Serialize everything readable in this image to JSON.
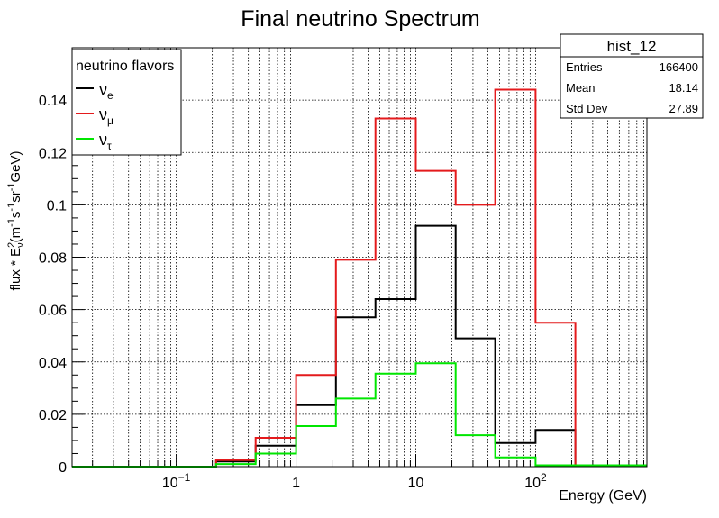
{
  "chart_data": {
    "type": "line",
    "title": "Final neutrino Spectrum",
    "xlabel": "Energy (GeV)",
    "ylabel": {
      "base": "flux * E",
      "sup": "2",
      "sub": "ν",
      "rest": "(m",
      "p1": "-1",
      "s": "s",
      "p2": "-1",
      "sr": "sr",
      "p3": "-1",
      "gev": "GeV)"
    },
    "x_scale": "log",
    "xlim": [
      0.0135,
      850
    ],
    "ylim": [
      0,
      0.16
    ],
    "grid": true,
    "x_ticks": [
      {
        "value": 0.1,
        "base": "10",
        "exp": "−1"
      },
      {
        "value": 1,
        "label": "1"
      },
      {
        "value": 10,
        "label": "10"
      },
      {
        "value": 100,
        "base": "10",
        "exp": "2"
      }
    ],
    "y_ticks": [
      {
        "value": 0,
        "label": "0"
      },
      {
        "value": 0.02,
        "label": "0.02"
      },
      {
        "value": 0.04,
        "label": "0.04"
      },
      {
        "value": 0.06,
        "label": "0.06"
      },
      {
        "value": 0.08,
        "label": "0.08"
      },
      {
        "value": 0.1,
        "label": "0.1"
      },
      {
        "value": 0.12,
        "label": "0.12"
      },
      {
        "value": 0.14,
        "label": "0.14"
      }
    ],
    "bin_edges": [
      0.0135,
      0.0215,
      0.046,
      0.1,
      0.215,
      0.46,
      1,
      2.15,
      4.6,
      10,
      21.5,
      46,
      100,
      215,
      460,
      850
    ],
    "series": [
      {
        "symbol": "ν",
        "sub": "e",
        "color": "#000000",
        "values": [
          0,
          0,
          0,
          0,
          0.002,
          0.008,
          0.0235,
          0.057,
          0.064,
          0.092,
          0.049,
          0.009,
          0.014,
          0.0005,
          0.0005
        ]
      },
      {
        "symbol": "ν",
        "sub": "μ",
        "color": "#e41a1c",
        "values": [
          0,
          0,
          0,
          0,
          0.0025,
          0.011,
          0.035,
          0.079,
          0.133,
          0.113,
          0.1,
          0.144,
          0.055,
          0.0005,
          0.0005
        ]
      },
      {
        "symbol": "ν",
        "sub": "τ",
        "color": "#00e600",
        "values": [
          0,
          0,
          0,
          0,
          0.001,
          0.005,
          0.0155,
          0.026,
          0.0355,
          0.0395,
          0.012,
          0.0035,
          0.0005,
          0.0005,
          0.0005
        ]
      }
    ],
    "legend": {
      "title": "neutrino flavors",
      "position": "top-left"
    },
    "stats": {
      "name": "hist_12",
      "rows": [
        {
          "label": "Entries",
          "value": "166400"
        },
        {
          "label": "Mean",
          "value": "18.14"
        },
        {
          "label": "Std Dev",
          "value": "27.89"
        }
      ]
    }
  }
}
